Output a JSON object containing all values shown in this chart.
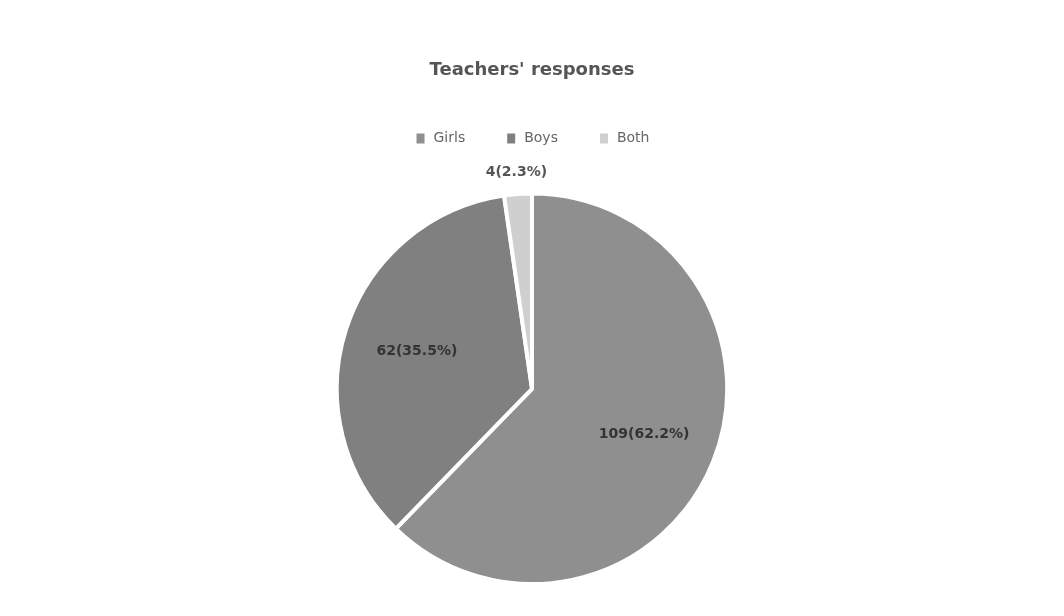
{
  "chart_data": {
    "type": "pie",
    "title": "Teachers' responses",
    "categories": [
      "Girls",
      "Boys",
      "Both"
    ],
    "values": [
      109,
      62,
      4
    ],
    "colors": [
      "#8f8f8f",
      "#808080",
      "#cfcfcf"
    ],
    "value_labels": [
      "109(62.2%)",
      "62(35.5%)",
      "4(2.3%)"
    ],
    "legend": "top"
  }
}
